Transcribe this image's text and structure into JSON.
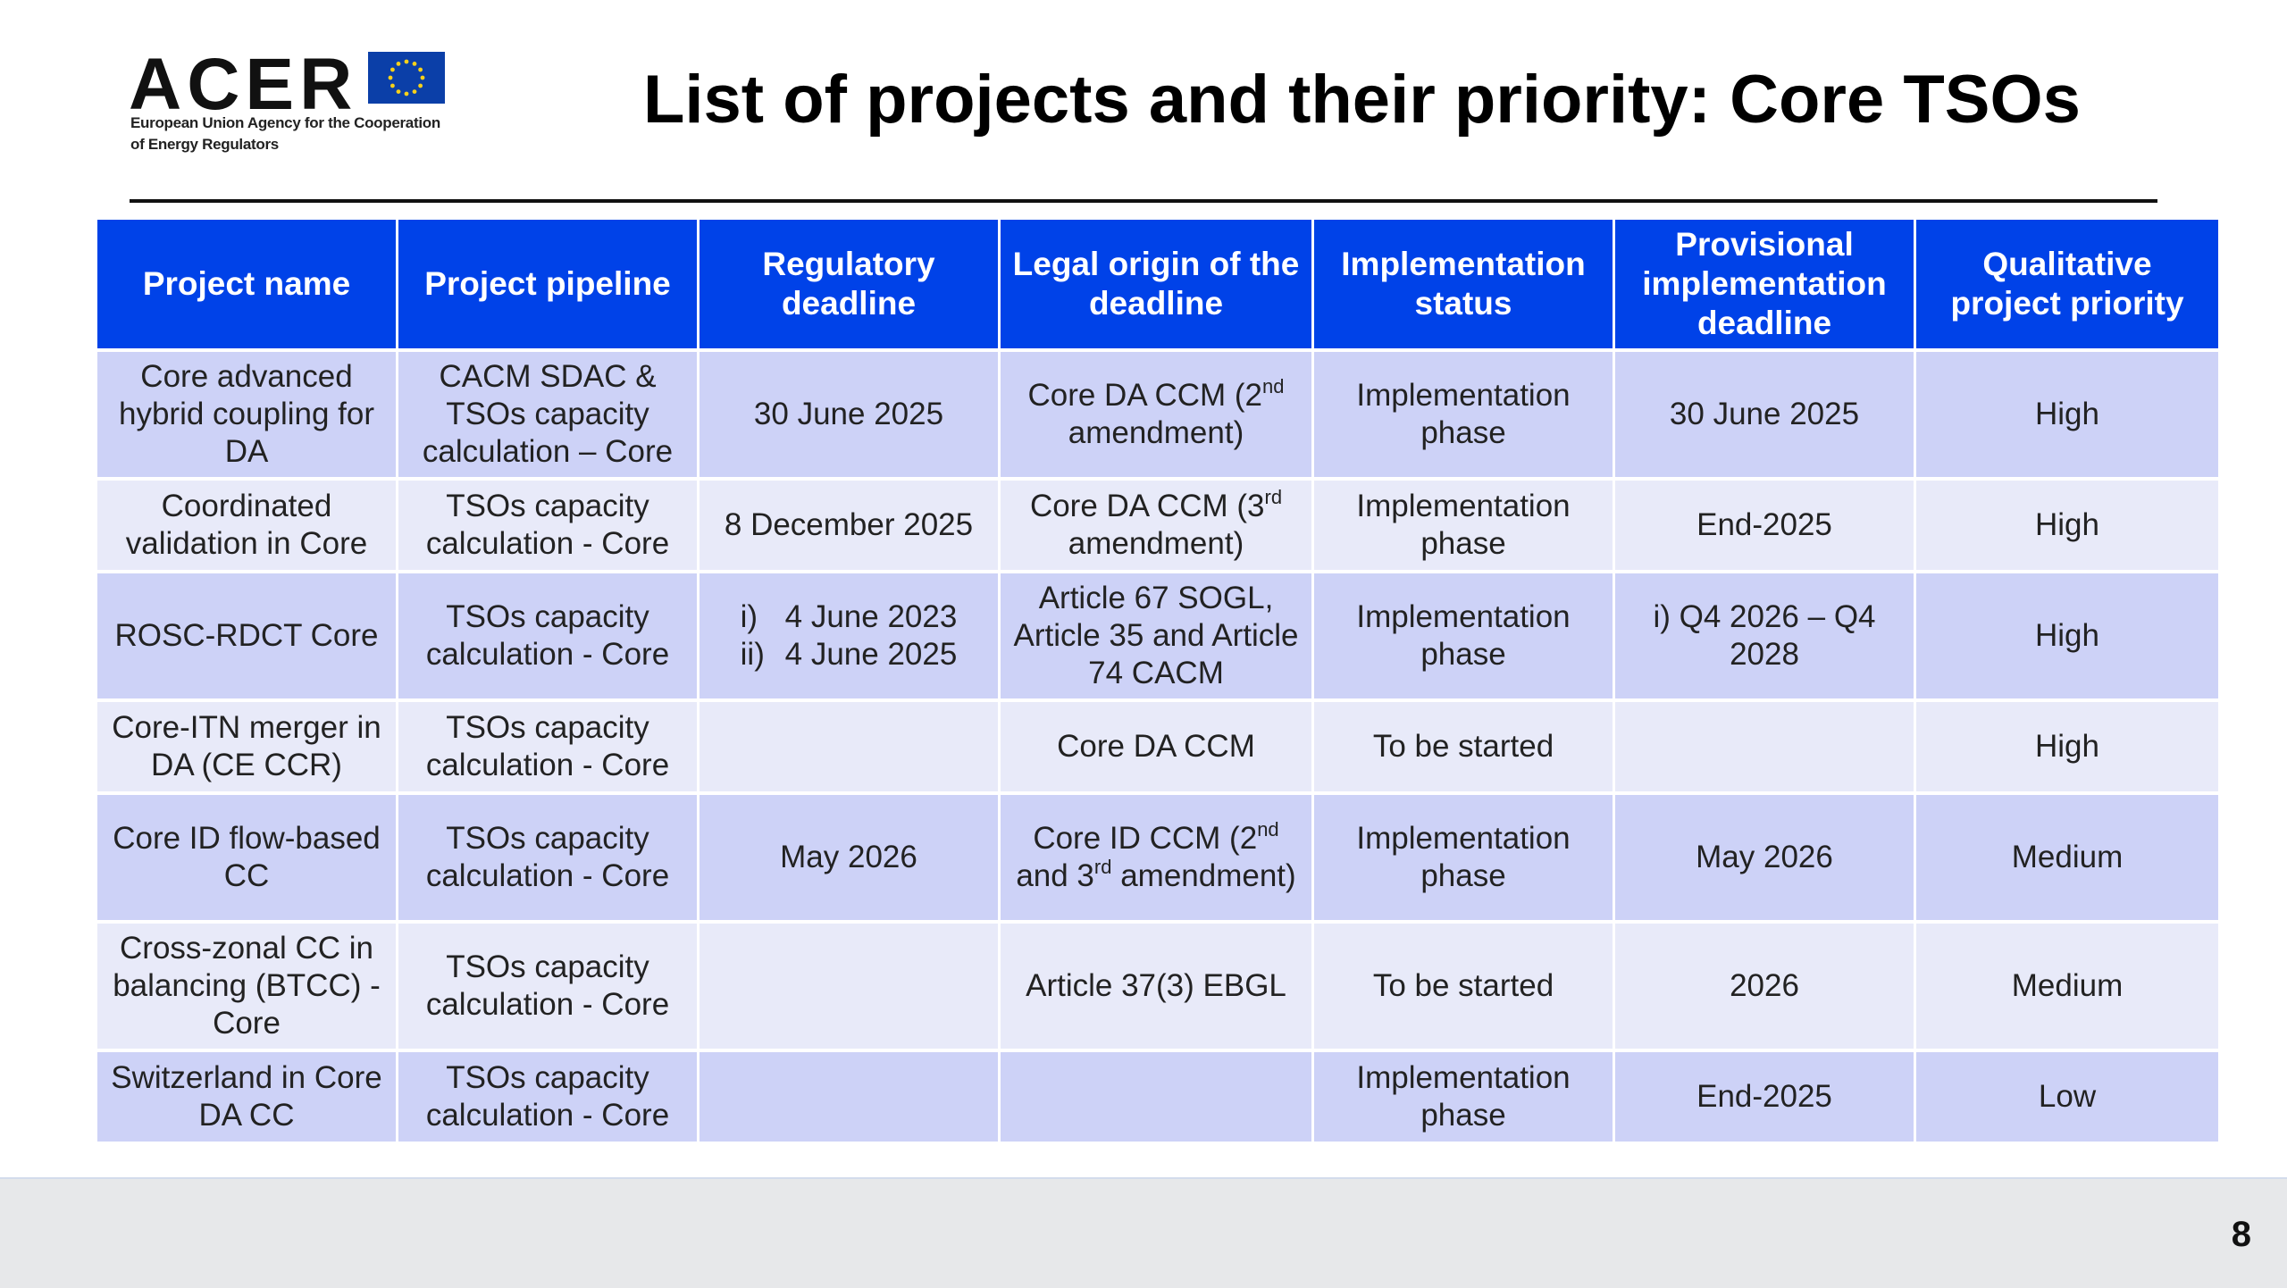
{
  "logo": {
    "word": "ACER",
    "subtitle_line1": "European Union Agency for the Cooperation",
    "subtitle_line2": "of Energy Regulators",
    "flag_color": "#0b3fa8",
    "star_color": "#f7d11a"
  },
  "title": "List of projects and their priority: Core TSOs",
  "table": {
    "headers": [
      "Project name",
      "Project pipeline",
      "Regulatory deadline",
      "Legal origin of the deadline",
      "Implementation status",
      "Provisional implementation deadline",
      "Qualitative project priority"
    ],
    "rows": [
      {
        "name": "Core advanced hybrid coupling for DA",
        "pipeline": "CACM SDAC & TSOs capacity calculation – Core",
        "deadline": "30 June 2025",
        "origin": {
          "text": "Core DA CCM (2",
          "sup": "nd",
          "after": " amendment)"
        },
        "status": "Implementation phase",
        "provisional": "30 June 2025",
        "priority": "High"
      },
      {
        "name": "Coordinated validation in Core",
        "pipeline": "TSOs capacity calculation - Core",
        "deadline": "8 December 2025",
        "origin": {
          "text": "Core DA CCM (3",
          "sup": "rd",
          "after": " amendment)"
        },
        "status": "Implementation phase",
        "provisional": "End-2025",
        "priority": "High"
      },
      {
        "name": "ROSC-RDCT Core",
        "pipeline": "TSOs capacity calculation - Core",
        "deadline_list": [
          {
            "num": "i)",
            "text": "4 June 2023"
          },
          {
            "num": "ii)",
            "text": "4 June 2025"
          }
        ],
        "origin_plain": "Article 67 SOGL, Article 35 and Article 74 CACM",
        "status": "Implementation phase",
        "provisional": "i) Q4 2026 – Q4 2028",
        "priority": "High"
      },
      {
        "name": "Core-ITN merger in DA (CE CCR)",
        "pipeline": "TSOs capacity calculation - Core",
        "deadline": "",
        "origin_plain": "Core DA CCM",
        "status": "To be started",
        "provisional": "",
        "priority": "High"
      },
      {
        "name": "Core ID flow-based CC",
        "pipeline": "TSOs capacity calculation - Core",
        "deadline": "May 2026",
        "origin_two_sup": {
          "a": "Core ID CCM (2",
          "sup1": "nd",
          "b": " and 3",
          "sup2": "rd",
          "c": " amendment)"
        },
        "status": "Implementation phase",
        "provisional": "May 2026",
        "priority": "Medium"
      },
      {
        "name": "Cross-zonal CC in balancing (BTCC) - Core",
        "pipeline": "TSOs capacity calculation - Core",
        "deadline": "",
        "origin_plain": "Article 37(3) EBGL",
        "status": "To be started",
        "provisional": "2026",
        "priority": "Medium"
      },
      {
        "name": "Switzerland in Core DA CC",
        "pipeline": "TSOs capacity calculation - Core",
        "deadline": "",
        "origin_plain": "",
        "status": "Implementation phase",
        "provisional": "End-2025",
        "priority": "Low"
      }
    ]
  },
  "footer": {
    "page_number": "8"
  },
  "colors": {
    "header_bg": "#0042e8",
    "row_odd": "#cdd2f7",
    "row_even": "#e8eaf9",
    "footer_bg": "#e7e8ea"
  }
}
